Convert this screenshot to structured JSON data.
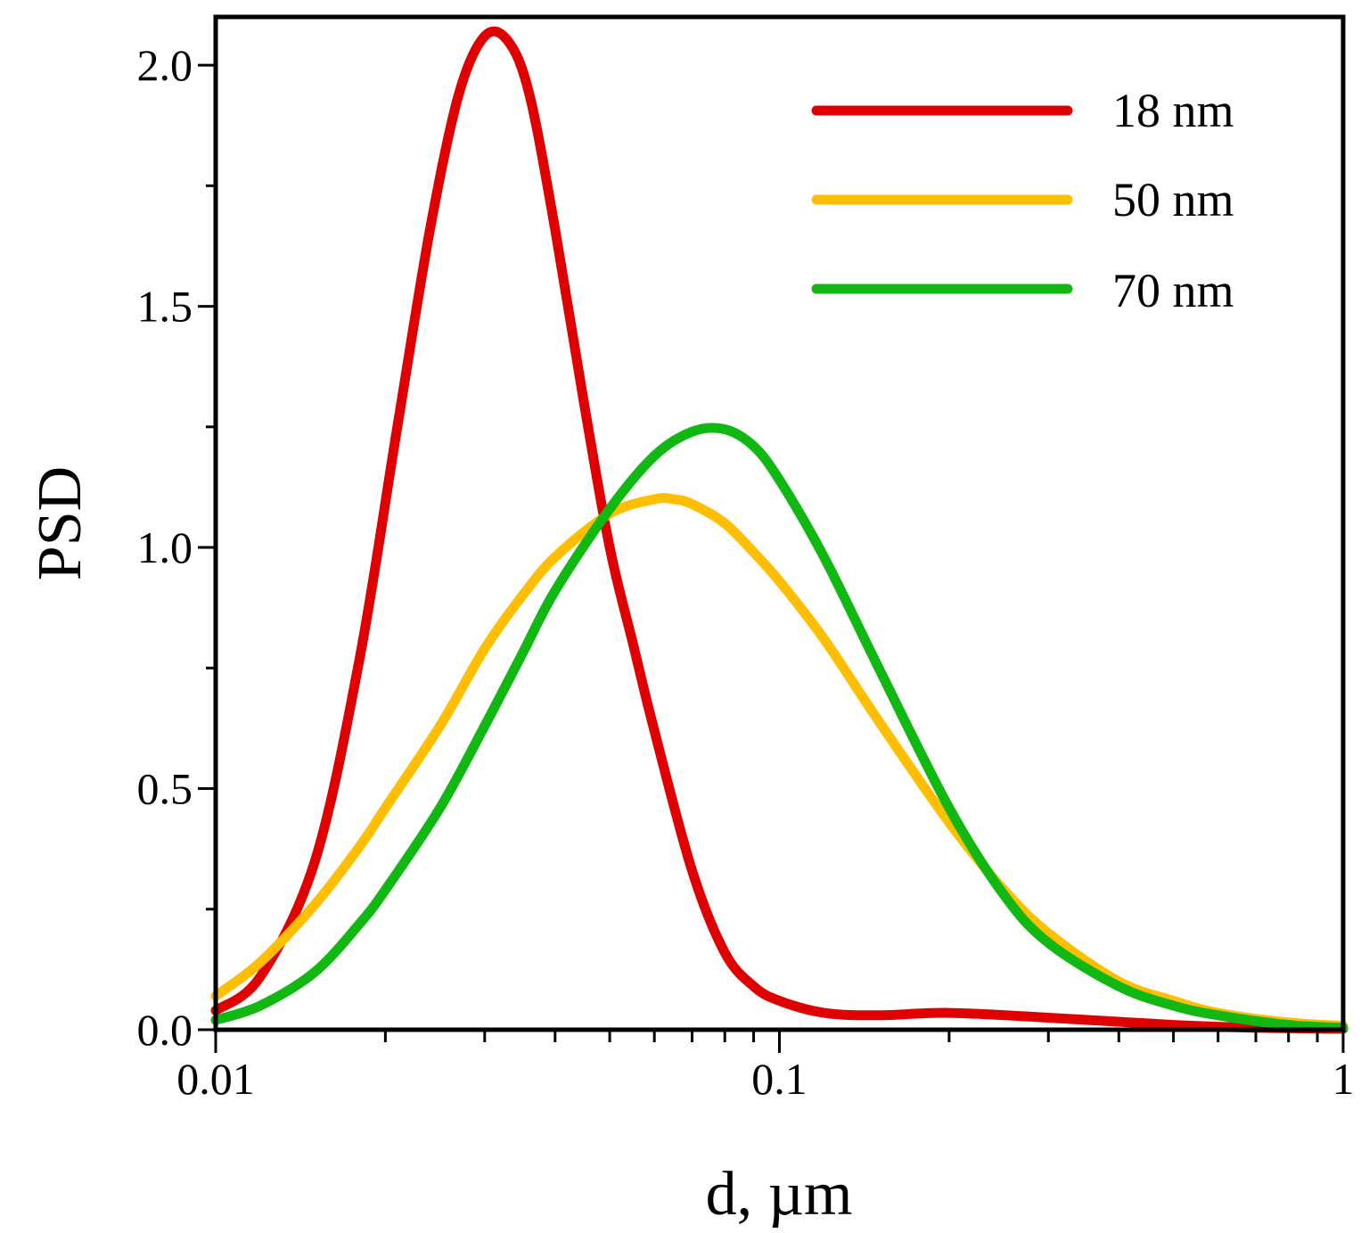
{
  "chart_data": {
    "type": "line",
    "title": "",
    "xlabel": "d, µm",
    "ylabel": "PSD",
    "xscale": "log",
    "xlim": [
      0.01,
      1
    ],
    "ylim": [
      0,
      2.1
    ],
    "xticks": [
      {
        "value": 0.01,
        "label": "0.01"
      },
      {
        "value": 0.1,
        "label": "0.1"
      },
      {
        "value": 1,
        "label": "1"
      }
    ],
    "yticks": [
      {
        "value": 0.0,
        "label": "0.0"
      },
      {
        "value": 0.5,
        "label": "0.5"
      },
      {
        "value": 1.0,
        "label": "1.0"
      },
      {
        "value": 1.5,
        "label": "1.5"
      },
      {
        "value": 2.0,
        "label": "2.0"
      }
    ],
    "legend_position": "top-right",
    "series": [
      {
        "name": "18 nm",
        "color": "#e00000",
        "x": [
          0.01,
          0.012,
          0.015,
          0.018,
          0.021,
          0.024,
          0.027,
          0.03,
          0.033,
          0.036,
          0.04,
          0.045,
          0.05,
          0.055,
          0.06,
          0.07,
          0.08,
          0.09,
          0.1,
          0.12,
          0.15,
          0.2,
          0.3,
          0.5,
          0.7,
          1.0
        ],
        "y": [
          0.04,
          0.11,
          0.35,
          0.77,
          1.25,
          1.66,
          1.94,
          2.06,
          2.05,
          1.94,
          1.66,
          1.3,
          1.0,
          0.8,
          0.62,
          0.33,
          0.16,
          0.09,
          0.06,
          0.035,
          0.03,
          0.035,
          0.025,
          0.01,
          0.004,
          0.002
        ]
      },
      {
        "name": "50 nm",
        "color": "#ffbf00",
        "x": [
          0.01,
          0.012,
          0.015,
          0.018,
          0.02,
          0.025,
          0.03,
          0.035,
          0.04,
          0.05,
          0.06,
          0.065,
          0.07,
          0.08,
          0.09,
          0.1,
          0.12,
          0.15,
          0.2,
          0.25,
          0.3,
          0.4,
          0.5,
          0.6,
          0.8,
          1.0
        ],
        "y": [
          0.07,
          0.14,
          0.26,
          0.38,
          0.46,
          0.63,
          0.79,
          0.9,
          0.98,
          1.07,
          1.1,
          1.1,
          1.09,
          1.05,
          0.99,
          0.93,
          0.81,
          0.64,
          0.43,
          0.29,
          0.2,
          0.1,
          0.06,
          0.035,
          0.015,
          0.008
        ]
      },
      {
        "name": "70 nm",
        "color": "#11b811",
        "x": [
          0.01,
          0.012,
          0.015,
          0.018,
          0.02,
          0.025,
          0.03,
          0.035,
          0.04,
          0.05,
          0.06,
          0.07,
          0.08,
          0.09,
          0.1,
          0.12,
          0.15,
          0.2,
          0.25,
          0.3,
          0.4,
          0.5,
          0.6,
          0.8,
          1.0
        ],
        "y": [
          0.02,
          0.05,
          0.12,
          0.22,
          0.29,
          0.46,
          0.63,
          0.78,
          0.91,
          1.08,
          1.19,
          1.24,
          1.245,
          1.21,
          1.14,
          0.98,
          0.75,
          0.46,
          0.28,
          0.18,
          0.09,
          0.05,
          0.03,
          0.01,
          0.004
        ]
      }
    ]
  }
}
